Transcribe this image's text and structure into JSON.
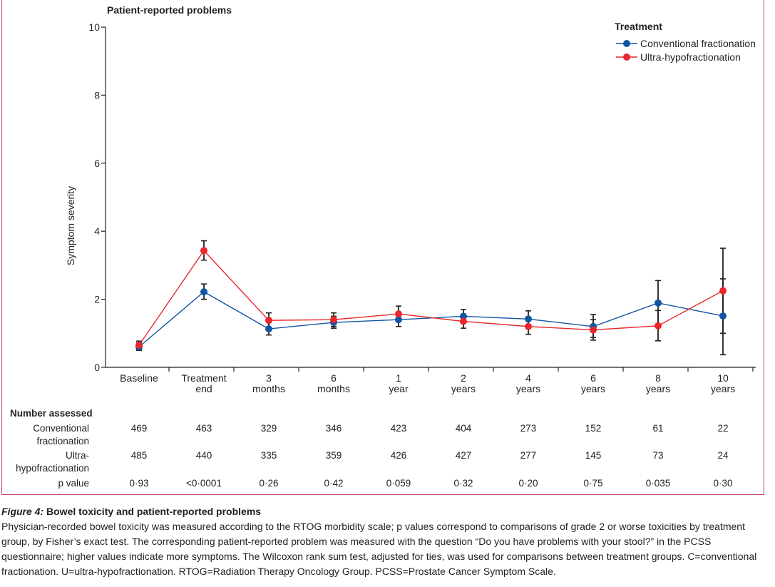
{
  "panel_title": "Patient-reported problems",
  "chart_data": {
    "type": "line",
    "title": "Patient-reported problems",
    "ylabel": "Symptom severity",
    "xlabel": "",
    "ylim": [
      0,
      10
    ],
    "yticks": [
      0,
      2,
      4,
      6,
      8,
      10
    ],
    "categories": [
      "Baseline",
      "Treatment end",
      "3 months",
      "6 months",
      "1 year",
      "2 years",
      "4 years",
      "6 years",
      "8 years",
      "10 years"
    ],
    "category_lines": [
      [
        "Baseline"
      ],
      [
        "Treatment",
        "end"
      ],
      [
        "3",
        "months"
      ],
      [
        "6",
        "months"
      ],
      [
        "1",
        "year"
      ],
      [
        "2",
        "years"
      ],
      [
        "4",
        "years"
      ],
      [
        "6",
        "years"
      ],
      [
        "8",
        "years"
      ],
      [
        "10",
        "years"
      ]
    ],
    "legend_title": "Treatment",
    "legend_position": "top-right",
    "series": [
      {
        "name": "Conventional fractionation",
        "color": "#1155a3",
        "values": [
          0.6,
          2.22,
          1.13,
          1.32,
          1.4,
          1.5,
          1.42,
          1.2,
          1.89,
          1.51
        ],
        "err_low": [
          0.5,
          2.0,
          0.95,
          1.15,
          1.2,
          1.3,
          1.2,
          0.88,
          1.22,
          0.37
        ],
        "err_high": [
          0.72,
          2.45,
          1.37,
          1.5,
          1.62,
          1.7,
          1.66,
          1.55,
          2.55,
          2.6
        ]
      },
      {
        "name": "Ultra-hypofractionation",
        "color": "#e8262b",
        "values": [
          0.65,
          3.43,
          1.38,
          1.4,
          1.57,
          1.35,
          1.2,
          1.1,
          1.22,
          2.25
        ],
        "err_low": [
          0.53,
          3.15,
          1.15,
          1.2,
          1.35,
          1.15,
          0.97,
          0.8,
          0.78,
          1.0
        ],
        "err_high": [
          0.77,
          3.72,
          1.6,
          1.6,
          1.8,
          1.55,
          1.42,
          1.4,
          1.67,
          3.5
        ]
      }
    ]
  },
  "number_assessed": {
    "title": "Number assessed",
    "rows": [
      {
        "label_lines": [
          "Conventional",
          "fractionation"
        ],
        "values": [
          "469",
          "463",
          "329",
          "346",
          "423",
          "404",
          "273",
          "152",
          "61",
          "22"
        ]
      },
      {
        "label_lines": [
          "Ultra-",
          "hypofractionation"
        ],
        "values": [
          "485",
          "440",
          "335",
          "359",
          "426",
          "427",
          "277",
          "145",
          "73",
          "24"
        ]
      }
    ],
    "p_label": "p value",
    "p_values": [
      "0·93",
      "<0·0001",
      "0·26",
      "0·42",
      "0·059",
      "0·32",
      "0·20",
      "0·75",
      "0·035",
      "0·30"
    ]
  },
  "caption": {
    "figure_label": "Figure 4:",
    "title": "Bowel toxicity and patient-reported problems",
    "text": "Physician-recorded bowel toxicity was measured according to the RTOG morbidity scale; p values correspond to comparisons of grade 2 or worse toxicities by treatment group, by Fisher’s exact test. The corresponding patient-reported problem was measured with the question “Do you have problems with your stool?” in the PCSS questionnaire; higher values indicate more symptoms. The Wilcoxon rank sum test, adjusted for ties, was used for comparisons between treatment groups. C=conventional fractionation. U=ultra-hypofractionation. RTOG=Radiation Therapy Oncology Group. PCSS=Prostate Cancer Symptom Scale."
  }
}
